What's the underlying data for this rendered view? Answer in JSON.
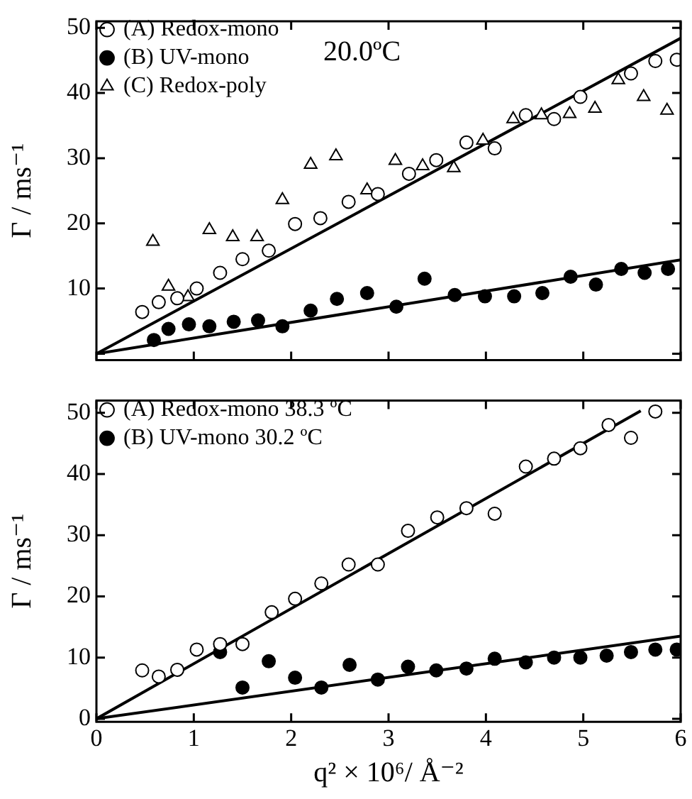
{
  "chart_data": [
    {
      "type": "scatter",
      "ylabel": "Γ / ms⁻¹",
      "xlim": [
        0,
        6
      ],
      "xticks": [
        0,
        1,
        2,
        3,
        4,
        5,
        6
      ],
      "ylim": [
        -1,
        51
      ],
      "yticks": [
        {
          "value": 0,
          "label": null
        },
        10,
        20,
        30,
        40,
        50
      ],
      "tick_labels": "y",
      "legend": "top left",
      "grid": false,
      "annotations": [
        "20.0ºC"
      ],
      "series": [
        {
          "name": "(A) Redox-mono",
          "color": "#000000",
          "marker": "circle",
          "x": [
            0.47,
            0.64,
            0.83,
            1.03,
            1.27,
            1.5,
            1.77,
            2.04,
            2.3,
            2.59,
            2.89,
            3.21,
            3.49,
            3.8,
            4.09,
            4.41,
            4.7,
            4.97,
            5.49,
            5.74,
            5.96
          ],
          "values": [
            6.4,
            7.9,
            8.5,
            10,
            12.4,
            14.5,
            15.8,
            19.9,
            20.8,
            23.3,
            24.5,
            27.6,
            29.7,
            32.4,
            31.5,
            36.6,
            36,
            39.4,
            43,
            44.9,
            45.1
          ]
        },
        {
          "name": "(B) UV-mono",
          "color": "#000000",
          "marker": "circle",
          "x": [
            0.59,
            0.74,
            0.95,
            1.16,
            1.41,
            1.66,
            1.91,
            2.2,
            2.47,
            2.78,
            3.08,
            3.37,
            3.68,
            3.99,
            4.29,
            4.58,
            4.87,
            5.13,
            5.39,
            5.63,
            5.87
          ],
          "values": [
            2.1,
            3.8,
            4.5,
            4.2,
            4.9,
            5.1,
            4.2,
            6.6,
            8.4,
            9.3,
            7.2,
            11.5,
            9,
            8.8,
            8.8,
            9.3,
            11.8,
            10.6,
            13,
            12.4,
            13
          ]
        },
        {
          "name": "(C) Redox-poly",
          "color": "#000000",
          "marker": "triangle",
          "x": [
            0.58,
            0.74,
            0.94,
            1.16,
            1.4,
            1.65,
            1.91,
            2.2,
            2.46,
            2.78,
            3.07,
            3.35,
            3.67,
            3.97,
            4.28,
            4.57,
            4.86,
            5.12,
            5.36,
            5.62,
            5.86
          ],
          "values": [
            17.2,
            10.3,
            8.7,
            19,
            17.9,
            17.9,
            23.6,
            29,
            30.3,
            25.1,
            29.6,
            28.8,
            28.5,
            32.7,
            36,
            36.6,
            36.8,
            37.6,
            42,
            39.4,
            37.3
          ]
        },
        {
          "type": "line",
          "color": "#000000",
          "marker": "none",
          "x": [
            0,
            6
          ],
          "values": [
            0,
            48.4
          ]
        },
        {
          "type": "line",
          "color": "#000000",
          "marker": "none",
          "x": [
            0,
            6
          ],
          "values": [
            0,
            14.4
          ]
        }
      ]
    },
    {
      "type": "scatter",
      "ylabel": "Γ / ms⁻¹",
      "xlabel": "q² × 10⁶/ Å⁻²",
      "xlim": [
        0,
        6
      ],
      "xticks": [
        0,
        1,
        2,
        3,
        4,
        5,
        6
      ],
      "ylim": [
        -0.5,
        52
      ],
      "yticks": [
        0,
        10,
        20,
        30,
        40,
        50
      ],
      "legend": "top left",
      "grid": false,
      "series": [
        {
          "name": "(A) Redox-mono 38.3 ºC",
          "color": "#000000",
          "marker": "circle",
          "x": [
            0.47,
            0.64,
            0.83,
            1.03,
            1.27,
            1.5,
            1.8,
            2.04,
            2.31,
            2.59,
            2.89,
            3.2,
            3.5,
            3.8,
            4.09,
            4.41,
            4.7,
            4.97,
            5.26,
            5.49,
            5.74
          ],
          "values": [
            7.9,
            6.9,
            8,
            11.3,
            12.2,
            12.2,
            17.4,
            19.6,
            22.1,
            25.2,
            25.2,
            30.7,
            32.9,
            34.4,
            33.5,
            41.2,
            42.5,
            44.2,
            48,
            45.9,
            50.2
          ]
        },
        {
          "name": "(B) UV-mono 30.2 ºC",
          "color": "#000000",
          "marker": "circle",
          "x": [
            1.27,
            1.5,
            1.77,
            2.04,
            2.31,
            2.6,
            2.89,
            3.2,
            3.49,
            3.8,
            4.09,
            4.41,
            4.7,
            4.97,
            5.24,
            5.49,
            5.74,
            5.96
          ],
          "values": [
            10.9,
            5.1,
            9.4,
            6.7,
            5.1,
            8.8,
            6.4,
            8.5,
            7.9,
            8.2,
            9.8,
            9.2,
            10,
            10,
            10.3,
            10.9,
            11.3,
            11.3
          ]
        },
        {
          "type": "line",
          "color": "#000000",
          "marker": "none",
          "x": [
            0,
            5.59
          ],
          "values": [
            0,
            50.3
          ]
        },
        {
          "type": "line",
          "color": "#000000",
          "marker": "none",
          "x": [
            0,
            6
          ],
          "values": [
            0,
            13.5
          ]
        }
      ]
    }
  ]
}
